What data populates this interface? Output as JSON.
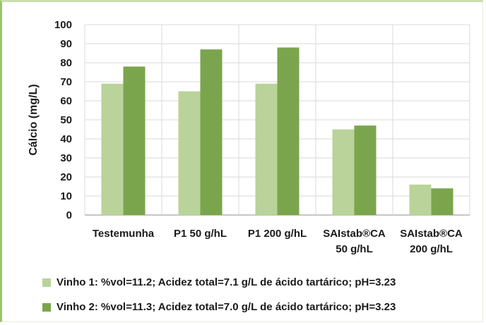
{
  "chart_data": {
    "type": "bar",
    "ylabel": "Cálcio (mg/L)",
    "ylim": [
      0,
      100
    ],
    "yticks": [
      0,
      10,
      20,
      30,
      40,
      50,
      60,
      70,
      80,
      90,
      100
    ],
    "grid": true,
    "legend_position": "bottom",
    "categories": [
      [
        "Testemunha"
      ],
      [
        "P1 50 g/hL"
      ],
      [
        "P1 200 g/hL"
      ],
      [
        "SAIstab®CA",
        "50 g/hL"
      ],
      [
        "SAIstab®CA",
        "200 g/hL"
      ]
    ],
    "series": [
      {
        "name": "Vinho 1: %vol=11.2; Acidez total=7.1 g/L de ácido tartárico; pH=3.23",
        "color": "#b9d39a",
        "values": [
          69,
          65,
          69,
          45,
          16
        ]
      },
      {
        "name": "Vinho 2: %vol=11.3; Acidez total=7.0 g/L de ácido tartárico; pH=3.23",
        "color": "#7ba54d",
        "values": [
          78,
          87,
          88,
          47,
          14
        ]
      }
    ]
  }
}
